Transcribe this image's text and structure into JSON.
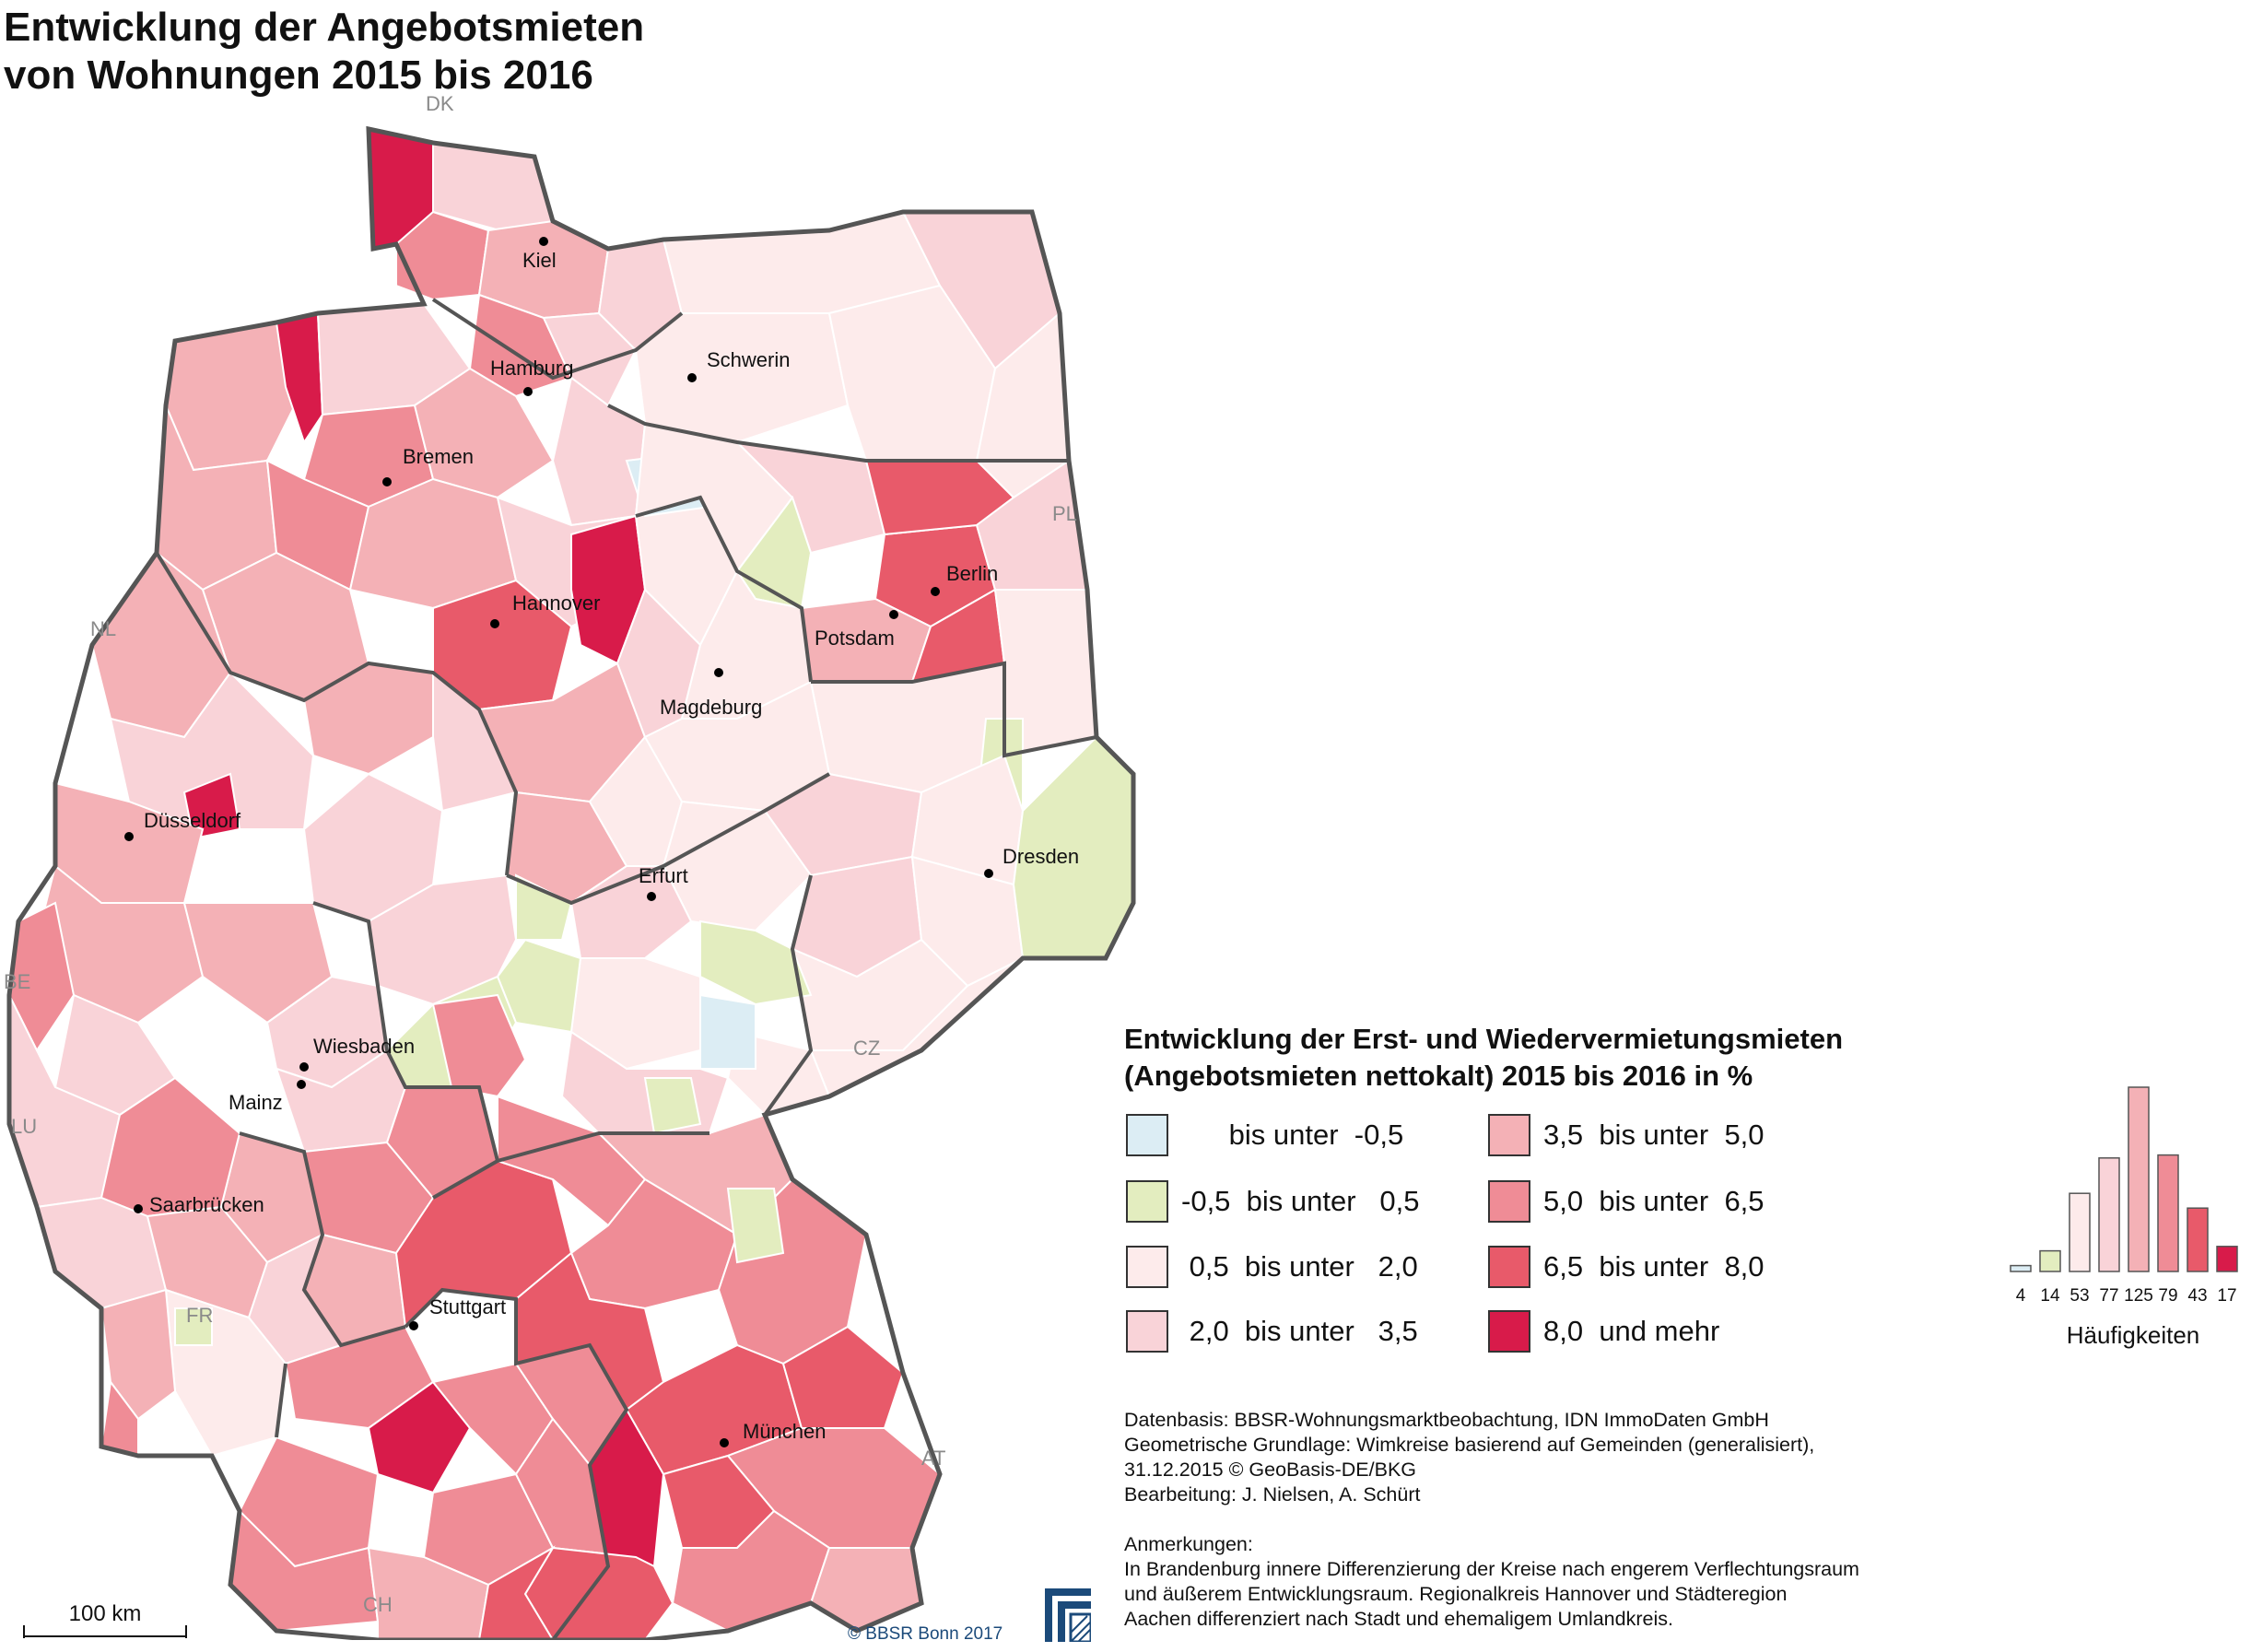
{
  "title": {
    "line1": "Entwicklung der Angebotsmieten",
    "line2": "von Wohnungen 2015 bis 2016"
  },
  "colors": {
    "class_1": "#dcedf4",
    "class_2": "#e3edbf",
    "class_3": "#fdebeb",
    "class_4": "#f9d3d8",
    "class_5": "#f4b1b6",
    "class_6": "#ef8c96",
    "class_7": "#e85a6a",
    "class_8": "#d81b4a",
    "border": "#555555"
  },
  "cities": [
    {
      "name": "Kiel"
    },
    {
      "name": "Hamburg"
    },
    {
      "name": "Schwerin"
    },
    {
      "name": "Bremen"
    },
    {
      "name": "Hannover"
    },
    {
      "name": "Berlin"
    },
    {
      "name": "Potsdam"
    },
    {
      "name": "Magdeburg"
    },
    {
      "name": "Düsseldorf"
    },
    {
      "name": "Erfurt"
    },
    {
      "name": "Dresden"
    },
    {
      "name": "Wiesbaden"
    },
    {
      "name": "Mainz"
    },
    {
      "name": "Saarbrücken"
    },
    {
      "name": "Stuttgart"
    },
    {
      "name": "München"
    }
  ],
  "countries": {
    "dk": "DK",
    "pl": "PL",
    "nl": "NL",
    "be": "BE",
    "lu": "LU",
    "fr": "FR",
    "cz": "CZ",
    "at": "AT",
    "ch": "CH"
  },
  "legend": {
    "title_line1": "Entwicklung der Erst- und Wiedervermietungsmieten",
    "title_line2": "(Angebotsmieten nettokalt) 2015 bis 2016 in %",
    "items": [
      {
        "label": "      bis unter  -0,5"
      },
      {
        "label": "-0,5  bis unter   0,5"
      },
      {
        "label": " 0,5  bis unter   2,0"
      },
      {
        "label": " 2,0  bis unter   3,5"
      },
      {
        "label": "3,5  bis unter  5,0"
      },
      {
        "label": "5,0  bis unter  6,5"
      },
      {
        "label": "6,5  bis unter  8,0"
      },
      {
        "label": "8,0  und mehr"
      }
    ]
  },
  "histogram": {
    "counts": [
      4,
      14,
      53,
      77,
      125,
      79,
      43,
      17
    ],
    "count_labels": [
      "4",
      "14",
      "53",
      "77",
      "125",
      "79",
      "43",
      "17"
    ],
    "label": "Häufigkeiten"
  },
  "footer": {
    "line1": "Datenbasis: BBSR-Wohnungsmarktbeobachtung, IDN ImmoDaten GmbH",
    "line2": "Geometrische Grundlage: Wimkreise basierend auf Gemeinden (generalisiert),",
    "line3": "31.12.2015 © GeoBasis-DE/BKG",
    "line4": "Bearbeitung: J. Nielsen, A. Schürt",
    "line5": "Anmerkungen:",
    "line6": "In Brandenburg innere Differenzierung der Kreise nach engerem Verflechtungsraum",
    "line7": "und äußerem Entwicklungsraum. Regionalkreis Hannover und Städteregion",
    "line8": "Aachen differenziert nach Stadt und ehemaligem Umlandkreis."
  },
  "scale": {
    "label": "100 km"
  },
  "copyright": "©  BBSR Bonn 2017"
}
